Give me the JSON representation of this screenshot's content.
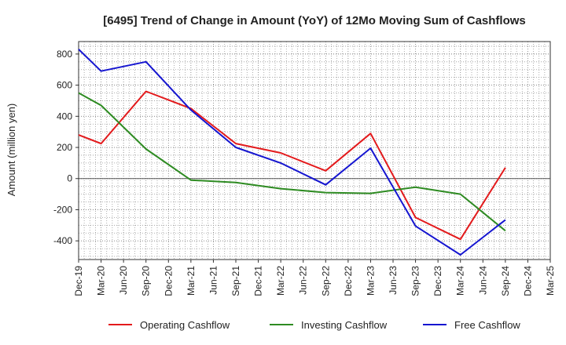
{
  "chart_data": {
    "type": "line",
    "title": "[6495]  Trend of Change in Amount (YoY) of 12Mo Moving Sum of Cashflows",
    "xlabel": "",
    "ylabel": "Amount (million yen)",
    "ylim": [
      -520,
      880
    ],
    "yticks": [
      -400,
      -200,
      0,
      200,
      400,
      600,
      800
    ],
    "ytick_labels": [
      "-400",
      "-200",
      "0",
      "200",
      "400",
      "600",
      "800"
    ],
    "categories": [
      "Dec-19",
      "Mar-20",
      "Jun-20",
      "Sep-20",
      "Dec-20",
      "Mar-21",
      "Jun-21",
      "Sep-21",
      "Dec-21",
      "Mar-22",
      "Jun-22",
      "Sep-22",
      "Dec-22",
      "Mar-23",
      "Jun-23",
      "Sep-23",
      "Dec-23",
      "Mar-24",
      "Jun-24",
      "Sep-24",
      "Dec-24",
      "Mar-25"
    ],
    "grid": true,
    "legend_position": "bottom",
    "series": [
      {
        "name": "Operating Cashflow",
        "color": "#e31a1c",
        "x": [
          "Dec-19",
          "Mar-20",
          "Sep-20",
          "Mar-21",
          "Sep-21",
          "Mar-22",
          "Sep-22",
          "Mar-23",
          "Sep-23",
          "Mar-24",
          "Sep-24"
        ],
        "values": [
          280,
          225,
          560,
          450,
          225,
          165,
          50,
          290,
          -250,
          -390,
          70
        ]
      },
      {
        "name": "Investing Cashflow",
        "color": "#2e8b22",
        "x": [
          "Dec-19",
          "Mar-20",
          "Sep-20",
          "Mar-21",
          "Sep-21",
          "Mar-22",
          "Sep-22",
          "Mar-23",
          "Sep-23",
          "Mar-24",
          "Sep-24"
        ],
        "values": [
          550,
          470,
          190,
          -10,
          -25,
          -65,
          -90,
          -95,
          -55,
          -100,
          -335
        ]
      },
      {
        "name": "Free Cashflow",
        "color": "#1515d0",
        "x": [
          "Dec-19",
          "Mar-20",
          "Sep-20",
          "Mar-21",
          "Sep-21",
          "Mar-22",
          "Sep-22",
          "Mar-23",
          "Sep-23",
          "Mar-24",
          "Sep-24"
        ],
        "values": [
          830,
          690,
          750,
          440,
          200,
          100,
          -40,
          195,
          -305,
          -490,
          -265
        ]
      }
    ]
  }
}
